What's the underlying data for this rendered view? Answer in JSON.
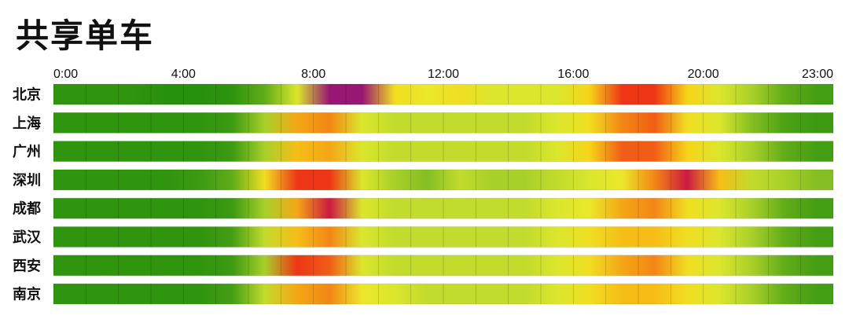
{
  "chart_data": {
    "type": "heatmap",
    "title": "共享单车",
    "xlabel": "",
    "ylabel": "",
    "hours": [
      0,
      1,
      2,
      3,
      4,
      5,
      6,
      7,
      8,
      9,
      10,
      11,
      12,
      13,
      14,
      15,
      16,
      17,
      18,
      19,
      20,
      21,
      22,
      23
    ],
    "x_tick_labels": [
      {
        "hour": 0,
        "label": "0:00"
      },
      {
        "hour": 4,
        "label": "4:00"
      },
      {
        "hour": 8,
        "label": "8:00"
      },
      {
        "hour": 12,
        "label": "12:00"
      },
      {
        "hour": 16,
        "label": "16:00"
      },
      {
        "hour": 20,
        "label": "20:00"
      },
      {
        "hour": 23,
        "label": "23:00"
      }
    ],
    "scale": {
      "min": 0,
      "max": 10,
      "colors": [
        "#1a8a0a",
        "#4fa315",
        "#a8d02a",
        "#e8ec2e",
        "#f6d418",
        "#f59a16",
        "#ee3516",
        "#c4124a",
        "#7a1a8c"
      ]
    },
    "rows": [
      {
        "city": "北京",
        "values": [
          0.5,
          0.5,
          0.5,
          0.3,
          0.3,
          0.5,
          1.5,
          3.5,
          9.5,
          9.5,
          4.5,
          4.0,
          4.5,
          3.5,
          3.5,
          3.5,
          5.0,
          7.5,
          7.5,
          5.0,
          3.5,
          2.5,
          1.5,
          1.0
        ]
      },
      {
        "city": "上海",
        "values": [
          0.5,
          0.5,
          0.5,
          0.5,
          0.5,
          0.8,
          2.5,
          6.0,
          6.5,
          3.5,
          3.0,
          3.0,
          3.0,
          3.0,
          3.0,
          3.5,
          4.5,
          6.5,
          7.0,
          4.5,
          3.5,
          2.0,
          1.2,
          0.8
        ]
      },
      {
        "city": "广州",
        "values": [
          0.5,
          0.5,
          0.5,
          0.5,
          0.5,
          0.8,
          2.5,
          5.5,
          6.0,
          3.5,
          3.0,
          3.0,
          3.0,
          3.0,
          3.0,
          3.5,
          5.0,
          7.0,
          7.0,
          5.0,
          3.5,
          2.5,
          1.5,
          1.0
        ]
      },
      {
        "city": "深圳",
        "values": [
          0.5,
          0.5,
          0.5,
          0.5,
          0.8,
          1.5,
          4.5,
          7.5,
          7.5,
          3.5,
          2.5,
          2.0,
          3.0,
          2.5,
          2.5,
          3.0,
          3.5,
          4.0,
          6.5,
          8.5,
          5.5,
          3.0,
          2.5,
          2.0
        ]
      },
      {
        "city": "成都",
        "values": [
          0.5,
          0.5,
          0.5,
          0.5,
          0.5,
          0.8,
          2.5,
          6.0,
          8.5,
          3.5,
          3.0,
          3.0,
          3.0,
          3.0,
          3.0,
          3.5,
          4.0,
          6.0,
          6.5,
          4.5,
          3.5,
          2.5,
          1.5,
          1.0
        ]
      },
      {
        "city": "武汉",
        "values": [
          0.5,
          0.5,
          0.5,
          0.5,
          0.5,
          1.0,
          3.0,
          5.5,
          6.5,
          3.5,
          3.0,
          3.0,
          3.0,
          3.0,
          3.0,
          3.5,
          4.5,
          5.5,
          5.5,
          4.5,
          3.5,
          2.5,
          1.5,
          1.0
        ]
      },
      {
        "city": "西安",
        "values": [
          0.5,
          0.5,
          0.5,
          0.5,
          0.5,
          0.8,
          2.5,
          7.5,
          7.0,
          3.5,
          3.0,
          3.0,
          3.0,
          3.0,
          3.0,
          3.5,
          4.5,
          6.0,
          6.5,
          4.5,
          3.5,
          2.5,
          1.5,
          1.0
        ]
      },
      {
        "city": "南京",
        "values": [
          0.5,
          0.5,
          0.5,
          0.5,
          0.5,
          1.0,
          3.0,
          6.0,
          6.5,
          4.0,
          3.5,
          3.0,
          3.0,
          3.0,
          3.0,
          3.5,
          4.5,
          5.5,
          5.5,
          4.5,
          3.5,
          2.5,
          1.5,
          1.0
        ]
      }
    ]
  }
}
